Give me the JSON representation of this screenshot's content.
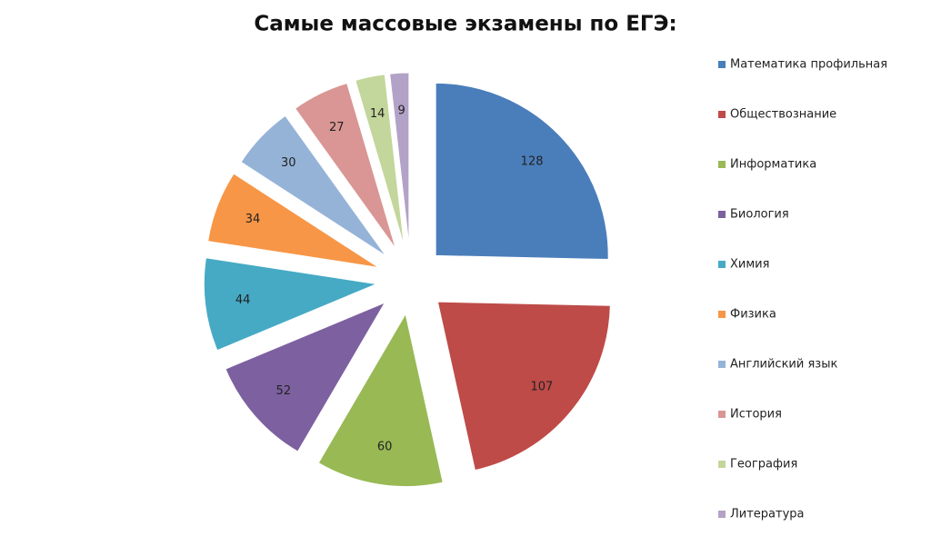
{
  "chart_data": {
    "type": "pie",
    "title": "Самые массовые экзамены по ЕГЭ:",
    "categories": [
      "Математика профильная",
      "Обществознание",
      "Информатика",
      "Биология",
      "Химия",
      "Физика",
      "Английский язык",
      "История",
      "География",
      "Литература"
    ],
    "values": [
      128,
      107,
      60,
      52,
      44,
      34,
      30,
      27,
      14,
      9
    ],
    "colors": [
      "#4a7ebb",
      "#be4b48",
      "#98b954",
      "#7d60a0",
      "#46aac5",
      "#f79646",
      "#95b3d7",
      "#d99694",
      "#c3d69b",
      "#b3a2c7"
    ],
    "legend": "right",
    "exploded": true
  }
}
